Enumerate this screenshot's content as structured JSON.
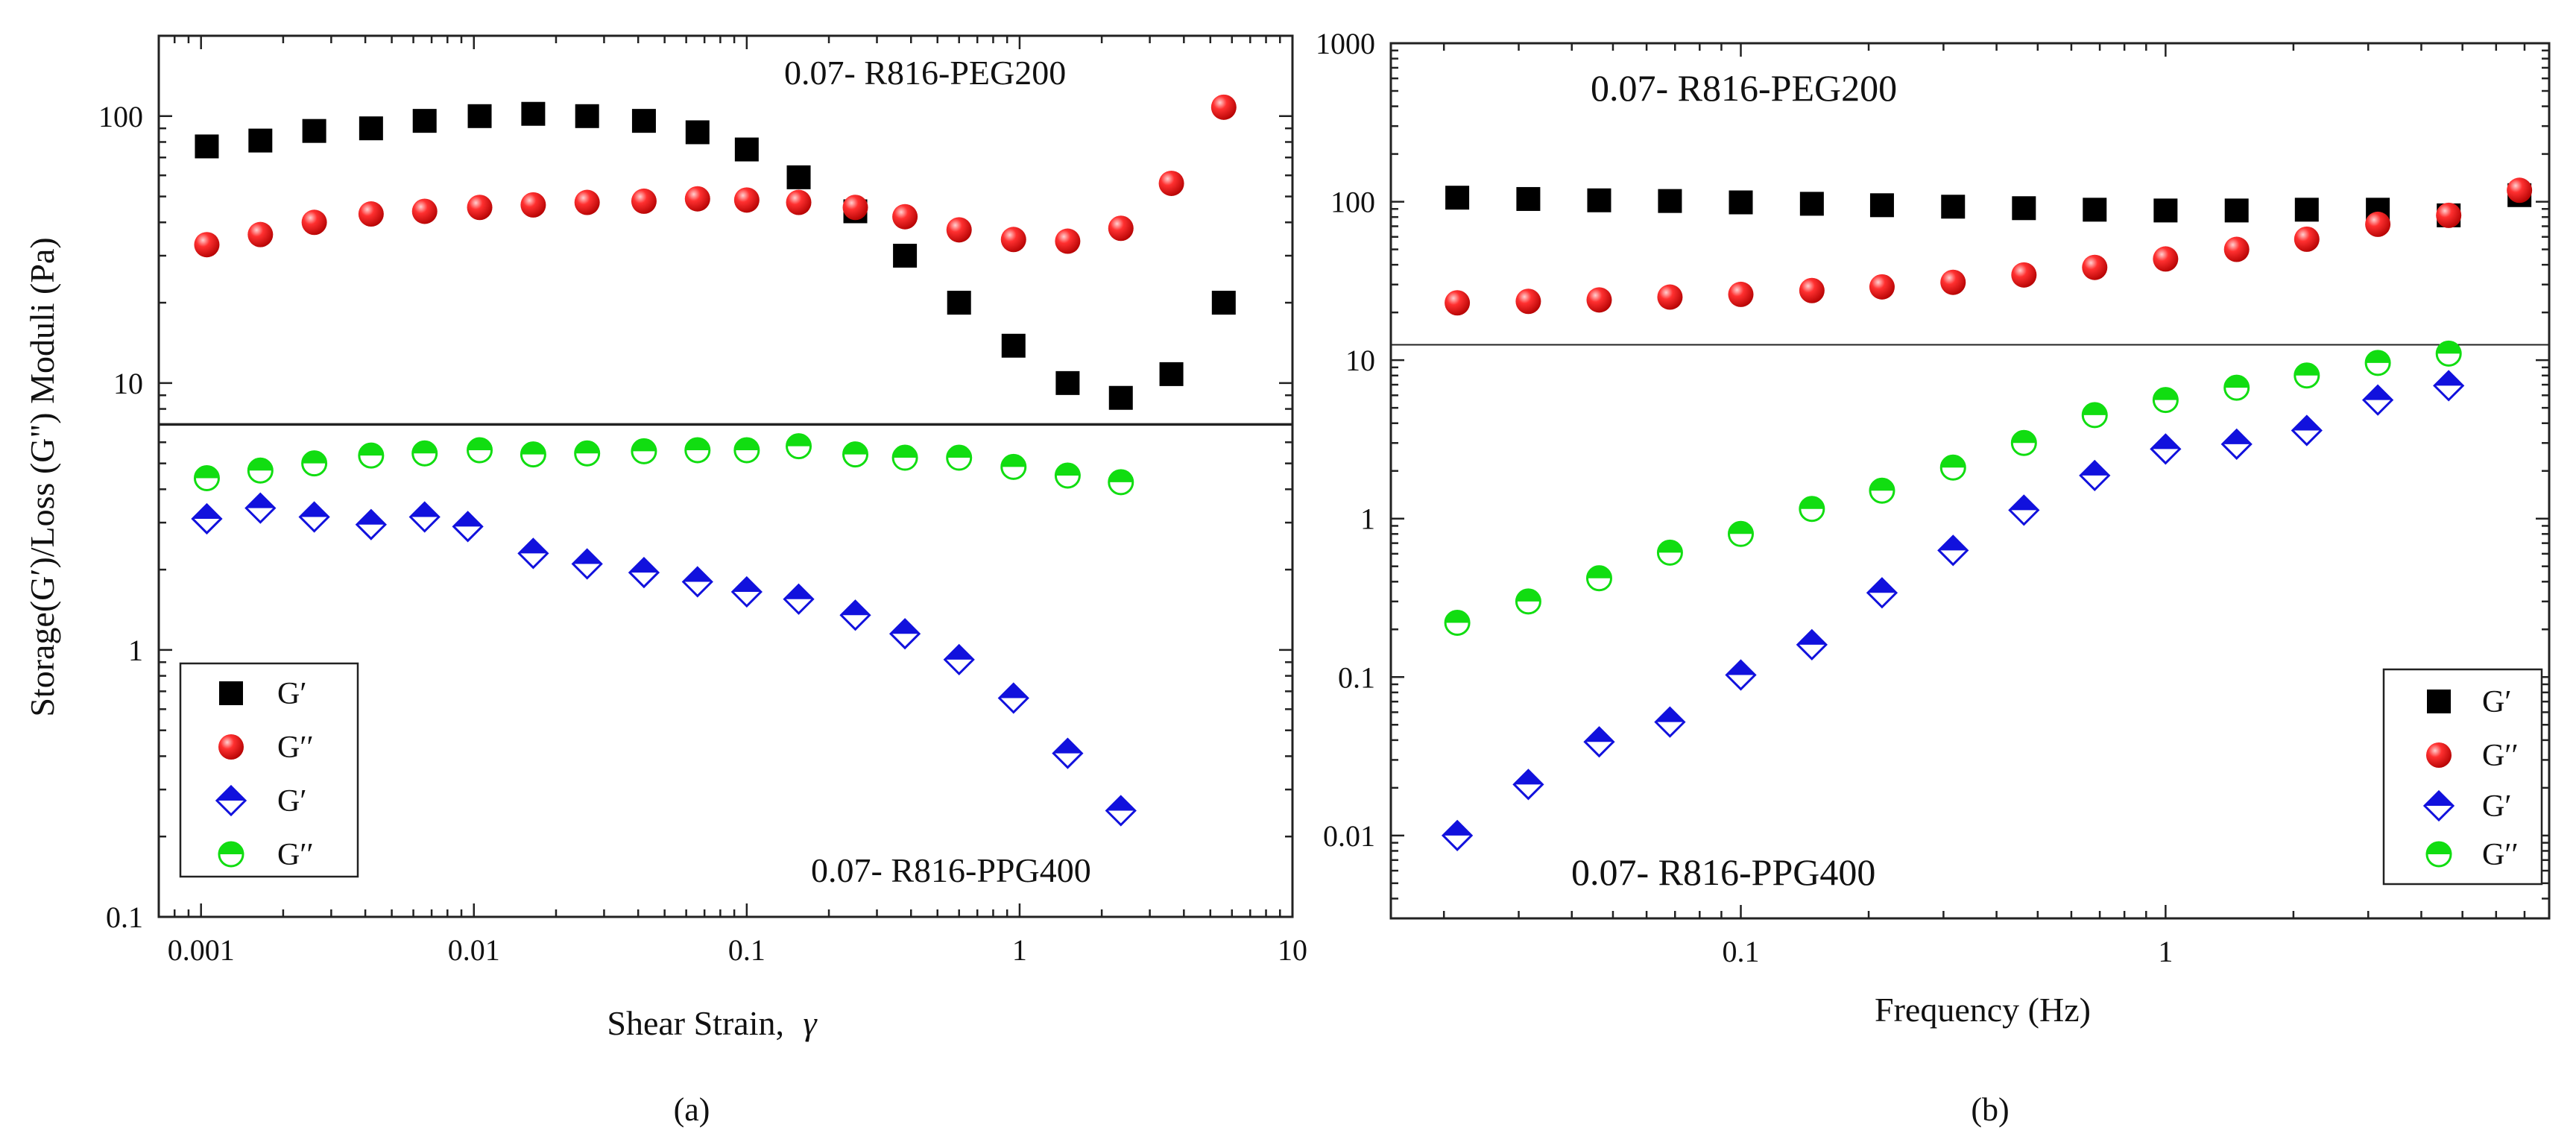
{
  "chart_data": [
    {
      "id": "a",
      "type": "scatter",
      "x_scale": "log",
      "y_scale": "log",
      "xlim": [
        0.0007,
        10
      ],
      "ylim": [
        0.1,
        200
      ],
      "xticks": [
        0.001,
        0.01,
        0.1,
        1,
        10
      ],
      "xtick_labels": [
        "0.001",
        "0.01",
        "0.1",
        "1",
        "10"
      ],
      "yticks": [
        0.1,
        1,
        10,
        100
      ],
      "ytick_labels": [
        "0.1",
        "1",
        "10",
        "100"
      ],
      "xlabel": "Shear Strain,",
      "xlabel_symbol": "γ",
      "ylabel": "Storage(G′)/Loss (G\") Moduli (Pa)",
      "caption": "(a)",
      "annotations": [
        "0.07- R816-PEG200",
        "0.07- R816-PPG400"
      ],
      "reference_line_y": 7,
      "legend_position": "bottom-left",
      "series": [
        {
          "name": "G′",
          "marker": "square",
          "color": "#000000",
          "x": [
            0.00105,
            0.00165,
            0.0026,
            0.0042,
            0.0066,
            0.0105,
            0.0165,
            0.026,
            0.042,
            0.066,
            0.1,
            0.155,
            0.25,
            0.38,
            0.6,
            0.95,
            1.5,
            2.35,
            3.6,
            5.6
          ],
          "y": [
            77,
            81,
            88,
            90,
            96,
            100,
            102,
            100,
            96,
            87,
            75,
            59,
            44,
            30,
            20,
            13.8,
            10,
            8.8,
            10.8,
            20
          ]
        },
        {
          "name": "G′′",
          "marker": "sphere",
          "color": "#ee1111",
          "x": [
            0.00105,
            0.00165,
            0.0026,
            0.0042,
            0.0066,
            0.0105,
            0.0165,
            0.026,
            0.042,
            0.066,
            0.1,
            0.155,
            0.25,
            0.38,
            0.6,
            0.95,
            1.5,
            2.35,
            3.6,
            5.6
          ],
          "y": [
            33,
            36,
            40,
            43,
            44,
            45.5,
            46.5,
            47.5,
            48,
            49,
            48.5,
            47.5,
            45.5,
            42,
            37.5,
            34.5,
            34,
            38,
            56,
            108
          ]
        },
        {
          "name": "G′",
          "marker": "diamond-half",
          "color": "#1111dd",
          "x": [
            0.00105,
            0.00165,
            0.0026,
            0.0042,
            0.0066,
            0.0095,
            0.0165,
            0.026,
            0.042,
            0.066,
            0.1,
            0.155,
            0.25,
            0.38,
            0.6,
            0.95,
            1.5,
            2.35
          ],
          "y": [
            3.1,
            3.4,
            3.15,
            2.95,
            3.15,
            2.9,
            2.3,
            2.1,
            1.95,
            1.8,
            1.65,
            1.55,
            1.35,
            1.15,
            0.92,
            0.66,
            0.41,
            0.25
          ]
        },
        {
          "name": "G′′",
          "marker": "circle-half",
          "color": "#11dd11",
          "x": [
            0.00105,
            0.00165,
            0.0026,
            0.0042,
            0.0066,
            0.0105,
            0.0165,
            0.026,
            0.042,
            0.066,
            0.1,
            0.155,
            0.25,
            0.38,
            0.6,
            0.95,
            1.5,
            2.35
          ],
          "y": [
            4.4,
            4.7,
            5.0,
            5.35,
            5.45,
            5.6,
            5.4,
            5.45,
            5.55,
            5.6,
            5.6,
            5.8,
            5.4,
            5.25,
            5.25,
            4.85,
            4.5,
            4.25
          ]
        }
      ]
    },
    {
      "id": "b",
      "type": "scatter",
      "x_scale": "log",
      "y_scale": "log",
      "xlim": [
        0.015,
        8
      ],
      "ylim": [
        0.003,
        1000
      ],
      "xticks": [
        0.1,
        1
      ],
      "xtick_labels": [
        "0.1",
        "1"
      ],
      "yticks": [
        0.01,
        0.1,
        1,
        10,
        100,
        1000
      ],
      "ytick_labels": [
        "0.01",
        "0.1",
        "1",
        "10",
        "100",
        "1000"
      ],
      "xlabel": "Frequency (Hz)",
      "ylabel": "",
      "caption": "(b)",
      "annotations": [
        "0.07- R816-PEG200",
        "0.07- R816-PPG400"
      ],
      "reference_line_y": 12.5,
      "legend_position": "bottom-right",
      "series": [
        {
          "name": "G′",
          "marker": "square",
          "color": "#000000",
          "x": [
            0.0215,
            0.0316,
            0.0464,
            0.0681,
            0.1,
            0.147,
            0.215,
            0.316,
            0.464,
            0.681,
            1,
            1.47,
            2.15,
            3.16,
            4.64,
            6.81
          ],
          "y": [
            106,
            104,
            102,
            101,
            99,
            97,
            95,
            93,
            91,
            89,
            88,
            88,
            89,
            89,
            82,
            110
          ]
        },
        {
          "name": "G′′",
          "marker": "sphere",
          "color": "#ee1111",
          "x": [
            0.0215,
            0.0316,
            0.0464,
            0.0681,
            0.1,
            0.147,
            0.215,
            0.316,
            0.464,
            0.681,
            1,
            1.47,
            2.15,
            3.16,
            4.64,
            6.81
          ],
          "y": [
            23,
            23.5,
            24,
            25,
            26,
            27.5,
            29,
            31,
            34.5,
            38.5,
            43.5,
            50,
            58,
            72,
            82,
            118
          ]
        },
        {
          "name": "G′",
          "marker": "diamond-half",
          "color": "#1111dd",
          "x": [
            0.0215,
            0.0316,
            0.0464,
            0.0681,
            0.1,
            0.147,
            0.215,
            0.316,
            0.464,
            0.681,
            1,
            1.47,
            2.15,
            3.16,
            4.64
          ],
          "y": [
            0.01,
            0.021,
            0.039,
            0.052,
            0.103,
            0.16,
            0.34,
            0.63,
            1.13,
            1.87,
            2.75,
            2.95,
            3.6,
            5.6,
            6.9
          ]
        },
        {
          "name": "G′′",
          "marker": "circle-half",
          "color": "#11dd11",
          "x": [
            0.0215,
            0.0316,
            0.0464,
            0.0681,
            0.1,
            0.147,
            0.215,
            0.316,
            0.464,
            0.681,
            1,
            1.47,
            2.15,
            3.16,
            4.64
          ],
          "y": [
            0.22,
            0.3,
            0.42,
            0.61,
            0.8,
            1.15,
            1.5,
            2.1,
            3.0,
            4.5,
            5.6,
            6.7,
            8.0,
            9.6,
            11.0
          ]
        }
      ]
    }
  ]
}
